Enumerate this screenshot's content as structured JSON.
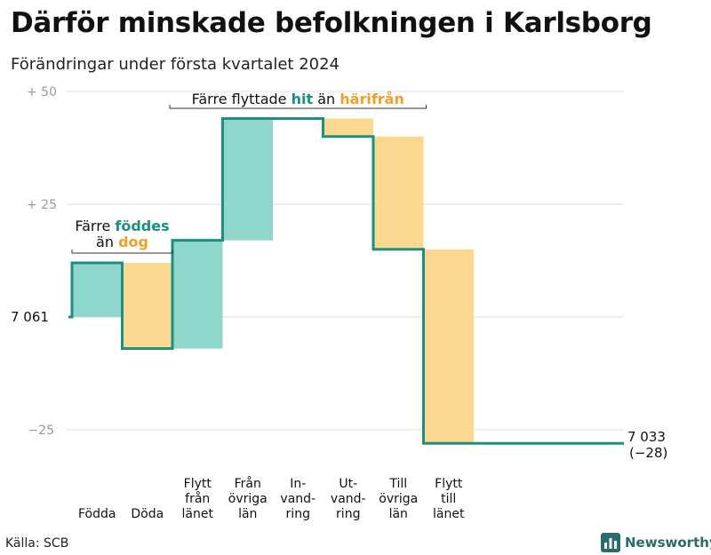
{
  "title": "Därför minskade befolkningen i Karlsborg",
  "subtitle": "Förändringar under första kvartalet 2024",
  "source": "Källa: SCB",
  "brand": {
    "name": "Newsworthy",
    "icon": "bar-chart-icon"
  },
  "colors": {
    "line": "#1a9081",
    "increase": "#8fd6cc",
    "decrease": "#fbd88f",
    "hit": "#1a9081",
    "harifran": "#f0a02a",
    "grid": "#e4e4e4",
    "axis_text": "#9a9a9a"
  },
  "chart_data": {
    "type": "waterfall",
    "start": {
      "label": "7 061",
      "value": 7061
    },
    "end": {
      "label": "7 033",
      "change_label": "(−28)",
      "value": 7033
    },
    "ylim": [
      -30,
      52
    ],
    "yticks": [
      {
        "value": 50,
        "label": "+  50"
      },
      {
        "value": 25,
        "label": "+  25"
      },
      {
        "value": -25,
        "label": "−25"
      }
    ],
    "steps": [
      {
        "lines": [
          "Födda"
        ],
        "delta": 12,
        "kind": "increase"
      },
      {
        "lines": [
          "Döda"
        ],
        "delta": -19,
        "kind": "decrease"
      },
      {
        "lines": [
          "Flytt",
          "från",
          "länet"
        ],
        "delta": 24,
        "kind": "increase"
      },
      {
        "lines": [
          "Från",
          "övriga",
          "län"
        ],
        "delta": 27,
        "kind": "increase"
      },
      {
        "lines": [
          "In-",
          "vand-",
          "ring"
        ],
        "delta": 0,
        "kind": "increase"
      },
      {
        "lines": [
          "Ut-",
          "vand-",
          "ring"
        ],
        "delta": -4,
        "kind": "decrease"
      },
      {
        "lines": [
          "Till",
          "övriga",
          "län"
        ],
        "delta": -25,
        "kind": "decrease"
      },
      {
        "lines": [
          "Flytt",
          "till",
          "länet"
        ],
        "delta": -43,
        "kind": "decrease"
      }
    ],
    "annotations": [
      {
        "parts": [
          {
            "text": "Färre ",
            "style": "plain"
          },
          {
            "text": "föddes",
            "style": "hit"
          }
        ],
        "line2": [
          {
            "text": "än ",
            "style": "plain"
          },
          {
            "text": "dog",
            "style": "harifran"
          }
        ],
        "from_step": 0,
        "to_step": 1
      },
      {
        "parts": [
          {
            "text": "Färre flyttade ",
            "style": "plain"
          },
          {
            "text": "hit",
            "style": "hit"
          },
          {
            "text": " än ",
            "style": "plain"
          },
          {
            "text": "härifrån",
            "style": "harifran"
          }
        ],
        "from_step": 2,
        "to_step": 7
      }
    ]
  }
}
